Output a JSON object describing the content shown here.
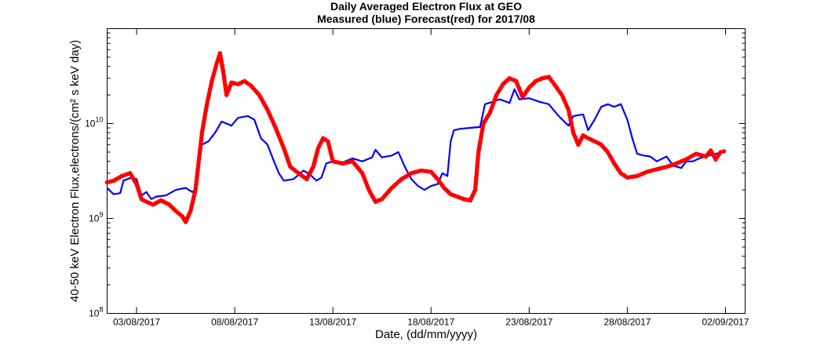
{
  "chart_data": {
    "type": "line",
    "title": "Daily Averaged Electron Flux at GEO",
    "subtitle": "Measured (blue) Forecast(red) for 2017/08",
    "xlabel": "Date, (dd/mm/yyyy)",
    "ylabel": "40-50 keV Electron Flux,electrons/(cm² s keV day)",
    "y_scale": "log",
    "ylim": [
      100000000.0,
      100000000000.0
    ],
    "y_ticks": [
      {
        "value": 100000000.0,
        "base": "10",
        "exp": "8"
      },
      {
        "value": 1000000000.0,
        "base": "10",
        "exp": "9"
      },
      {
        "value": 10000000000.0,
        "base": "10",
        "exp": "10"
      }
    ],
    "xlim": [
      "2017-08-01T12:00",
      "2017-09-03T00:00"
    ],
    "x_ticks": [
      {
        "value": "2017-08-03",
        "label": "03/08/2017"
      },
      {
        "value": "2017-08-08",
        "label": "08/08/2017"
      },
      {
        "value": "2017-08-13",
        "label": "13/08/2017"
      },
      {
        "value": "2017-08-18",
        "label": "18/08/2017"
      },
      {
        "value": "2017-08-23",
        "label": "23/08/2017"
      },
      {
        "value": "2017-08-28",
        "label": "28/08/2017"
      },
      {
        "value": "2017-09-02",
        "label": "02/09/2017"
      }
    ],
    "grid": false,
    "series": [
      {
        "color": "#0000ff",
        "style": "line",
        "points": [
          [
            "2017-08-01T12:00",
            2100000000.0
          ],
          [
            "2017-08-01T20:00",
            1800000000.0
          ],
          [
            "2017-08-02T04:00",
            1850000000.0
          ],
          [
            "2017-08-02T08:00",
            2500000000.0
          ],
          [
            "2017-08-02T18:00",
            2700000000.0
          ],
          [
            "2017-08-03T00:00",
            2600000000.0
          ],
          [
            "2017-08-03T06:00",
            1750000000.0
          ],
          [
            "2017-08-03T12:00",
            1900000000.0
          ],
          [
            "2017-08-03T18:00",
            1600000000.0
          ],
          [
            "2017-08-04T00:00",
            1700000000.0
          ],
          [
            "2017-08-04T12:00",
            1750000000.0
          ],
          [
            "2017-08-05T00:00",
            2000000000.0
          ],
          [
            "2017-08-05T12:00",
            2100000000.0
          ],
          [
            "2017-08-05T20:00",
            1900000000.0
          ],
          [
            "2017-08-06T00:00",
            2000000000.0
          ],
          [
            "2017-08-06T04:00",
            3500000000.0
          ],
          [
            "2017-08-06T08:00",
            6000000000.0
          ],
          [
            "2017-08-06T16:00",
            6500000000.0
          ],
          [
            "2017-08-07T00:00",
            8000000000.0
          ],
          [
            "2017-08-07T08:00",
            10500000000.0
          ],
          [
            "2017-08-07T20:00",
            9500000000.0
          ],
          [
            "2017-08-08T04:00",
            11500000000.0
          ],
          [
            "2017-08-08T16:00",
            12000000000.0
          ],
          [
            "2017-08-09T00:00",
            11000000000.0
          ],
          [
            "2017-08-09T08:00",
            7000000000.0
          ],
          [
            "2017-08-09T16:00",
            6000000000.0
          ],
          [
            "2017-08-10T00:00",
            4000000000.0
          ],
          [
            "2017-08-10T06:00",
            3000000000.0
          ],
          [
            "2017-08-10T12:00",
            2500000000.0
          ],
          [
            "2017-08-11T00:00",
            2600000000.0
          ],
          [
            "2017-08-11T12:00",
            3200000000.0
          ],
          [
            "2017-08-11T20:00",
            2900000000.0
          ],
          [
            "2017-08-12T04:00",
            2500000000.0
          ],
          [
            "2017-08-12T10:00",
            2700000000.0
          ],
          [
            "2017-08-12T16:00",
            3800000000.0
          ],
          [
            "2017-08-13T00:00",
            4000000000.0
          ],
          [
            "2017-08-13T12:00",
            3900000000.0
          ],
          [
            "2017-08-14T00:00",
            4300000000.0
          ],
          [
            "2017-08-14T12:00",
            4000000000.0
          ],
          [
            "2017-08-15T00:00",
            4400000000.0
          ],
          [
            "2017-08-15T04:00",
            5300000000.0
          ],
          [
            "2017-08-15T12:00",
            4400000000.0
          ],
          [
            "2017-08-16T00:00",
            4600000000.0
          ],
          [
            "2017-08-16T08:00",
            5000000000.0
          ],
          [
            "2017-08-16T16:00",
            3500000000.0
          ],
          [
            "2017-08-17T00:00",
            2600000000.0
          ],
          [
            "2017-08-17T08:00",
            2200000000.0
          ],
          [
            "2017-08-17T16:00",
            2000000000.0
          ],
          [
            "2017-08-18T00:00",
            2200000000.0
          ],
          [
            "2017-08-18T08:00",
            2300000000.0
          ],
          [
            "2017-08-18T14:00",
            3000000000.0
          ],
          [
            "2017-08-18T20:00",
            2800000000.0
          ],
          [
            "2017-08-19T00:00",
            6500000000.0
          ],
          [
            "2017-08-19T04:00",
            8500000000.0
          ],
          [
            "2017-08-19T12:00",
            8800000000.0
          ],
          [
            "2017-08-20T00:00",
            9000000000.0
          ],
          [
            "2017-08-20T12:00",
            9200000000.0
          ],
          [
            "2017-08-20T18:00",
            16000000000.0
          ],
          [
            "2017-08-21T04:00",
            17000000000.0
          ],
          [
            "2017-08-21T12:00",
            18000000000.0
          ],
          [
            "2017-08-22T00:00",
            16500000000.0
          ],
          [
            "2017-08-22T06:00",
            23000000000.0
          ],
          [
            "2017-08-22T12:00",
            18000000000.0
          ],
          [
            "2017-08-23T00:00",
            18500000000.0
          ],
          [
            "2017-08-23T12:00",
            17000000000.0
          ],
          [
            "2017-08-24T00:00",
            16000000000.0
          ],
          [
            "2017-08-24T12:00",
            12000000000.0
          ],
          [
            "2017-08-25T00:00",
            9500000000.0
          ],
          [
            "2017-08-25T06:00",
            12000000000.0
          ],
          [
            "2017-08-25T18:00",
            12500000000.0
          ],
          [
            "2017-08-26T00:00",
            8500000000.0
          ],
          [
            "2017-08-26T08:00",
            11000000000.0
          ],
          [
            "2017-08-26T16:00",
            15000000000.0
          ],
          [
            "2017-08-27T00:00",
            16000000000.0
          ],
          [
            "2017-08-27T08:00",
            15000000000.0
          ],
          [
            "2017-08-27T16:00",
            16000000000.0
          ],
          [
            "2017-08-28T00:00",
            11000000000.0
          ],
          [
            "2017-08-28T06:00",
            7000000000.0
          ],
          [
            "2017-08-28T12:00",
            4800000000.0
          ],
          [
            "2017-08-28T20:00",
            4600000000.0
          ],
          [
            "2017-08-29T04:00",
            4500000000.0
          ],
          [
            "2017-08-29T12:00",
            4000000000.0
          ],
          [
            "2017-08-30T00:00",
            4500000000.0
          ],
          [
            "2017-08-30T08:00",
            3600000000.0
          ],
          [
            "2017-08-30T18:00",
            3400000000.0
          ],
          [
            "2017-08-31T00:00",
            4000000000.0
          ],
          [
            "2017-08-31T08:00",
            4000000000.0
          ],
          [
            "2017-08-31T16:00",
            4300000000.0
          ],
          [
            "2017-09-01T00:00",
            4500000000.0
          ],
          [
            "2017-09-01T12:00",
            4800000000.0
          ],
          [
            "2017-09-01T20:00",
            5000000000.0
          ]
        ]
      },
      {
        "color": "#ff0000",
        "style": "markers",
        "points": [
          [
            "2017-08-01T12:00",
            2400000000.0
          ],
          [
            "2017-08-01T20:00",
            2500000000.0
          ],
          [
            "2017-08-02T06:00",
            2800000000.0
          ],
          [
            "2017-08-02T16:00",
            3000000000.0
          ],
          [
            "2017-08-03T00:00",
            2300000000.0
          ],
          [
            "2017-08-03T06:00",
            1600000000.0
          ],
          [
            "2017-08-03T12:00",
            1500000000.0
          ],
          [
            "2017-08-03T20:00",
            1400000000.0
          ],
          [
            "2017-08-04T06:00",
            1550000000.0
          ],
          [
            "2017-08-04T16:00",
            1400000000.0
          ],
          [
            "2017-08-05T00:00",
            1200000000.0
          ],
          [
            "2017-08-05T08:00",
            1050000000.0
          ],
          [
            "2017-08-05T12:00",
            920000000.0
          ],
          [
            "2017-08-05T18:00",
            1200000000.0
          ],
          [
            "2017-08-06T00:00",
            2000000000.0
          ],
          [
            "2017-08-06T04:00",
            4000000000.0
          ],
          [
            "2017-08-06T08:00",
            8000000000.0
          ],
          [
            "2017-08-06T14:00",
            16000000000.0
          ],
          [
            "2017-08-06T20:00",
            28000000000.0
          ],
          [
            "2017-08-07T02:00",
            43000000000.0
          ],
          [
            "2017-08-07T06:00",
            55000000000.0
          ],
          [
            "2017-08-07T10:00",
            35000000000.0
          ],
          [
            "2017-08-07T14:00",
            20000000000.0
          ],
          [
            "2017-08-07T20:00",
            27000000000.0
          ],
          [
            "2017-08-08T04:00",
            26000000000.0
          ],
          [
            "2017-08-08T12:00",
            28000000000.0
          ],
          [
            "2017-08-08T20:00",
            25000000000.0
          ],
          [
            "2017-08-09T06:00",
            20000000000.0
          ],
          [
            "2017-08-09T16:00",
            14000000000.0
          ],
          [
            "2017-08-10T02:00",
            9000000000.0
          ],
          [
            "2017-08-10T12:00",
            5500000000.0
          ],
          [
            "2017-08-10T20:00",
            3500000000.0
          ],
          [
            "2017-08-11T06:00",
            3000000000.0
          ],
          [
            "2017-08-11T16:00",
            2600000000.0
          ],
          [
            "2017-08-12T00:00",
            3500000000.0
          ],
          [
            "2017-08-12T06:00",
            5500000000.0
          ],
          [
            "2017-08-12T12:00",
            7000000000.0
          ],
          [
            "2017-08-12T18:00",
            6500000000.0
          ],
          [
            "2017-08-13T00:00",
            4000000000.0
          ],
          [
            "2017-08-13T12:00",
            3800000000.0
          ],
          [
            "2017-08-14T00:00",
            4000000000.0
          ],
          [
            "2017-08-14T12:00",
            3000000000.0
          ],
          [
            "2017-08-14T20:00",
            2000000000.0
          ],
          [
            "2017-08-15T04:00",
            1500000000.0
          ],
          [
            "2017-08-15T12:00",
            1600000000.0
          ],
          [
            "2017-08-16T00:00",
            2100000000.0
          ],
          [
            "2017-08-16T12:00",
            2600000000.0
          ],
          [
            "2017-08-17T00:00",
            3000000000.0
          ],
          [
            "2017-08-17T12:00",
            3200000000.0
          ],
          [
            "2017-08-18T00:00",
            3100000000.0
          ],
          [
            "2017-08-18T08:00",
            2600000000.0
          ],
          [
            "2017-08-18T16:00",
            2100000000.0
          ],
          [
            "2017-08-19T00:00",
            1800000000.0
          ],
          [
            "2017-08-19T08:00",
            1700000000.0
          ],
          [
            "2017-08-19T16:00",
            1600000000.0
          ],
          [
            "2017-08-20T00:00",
            1550000000.0
          ],
          [
            "2017-08-20T06:00",
            2000000000.0
          ],
          [
            "2017-08-20T10:00",
            5000000000.0
          ],
          [
            "2017-08-20T16:00",
            10000000000.0
          ],
          [
            "2017-08-21T00:00",
            13000000000.0
          ],
          [
            "2017-08-21T08:00",
            20000000000.0
          ],
          [
            "2017-08-21T16:00",
            26000000000.0
          ],
          [
            "2017-08-22T00:00",
            30000000000.0
          ],
          [
            "2017-08-22T08:00",
            28000000000.0
          ],
          [
            "2017-08-22T16:00",
            19000000000.0
          ],
          [
            "2017-08-23T00:00",
            24000000000.0
          ],
          [
            "2017-08-23T08:00",
            28000000000.0
          ],
          [
            "2017-08-23T16:00",
            30000000000.0
          ],
          [
            "2017-08-24T00:00",
            31000000000.0
          ],
          [
            "2017-08-24T08:00",
            25000000000.0
          ],
          [
            "2017-08-24T16:00",
            20000000000.0
          ],
          [
            "2017-08-25T00:00",
            14000000000.0
          ],
          [
            "2017-08-25T06:00",
            8000000000.0
          ],
          [
            "2017-08-25T12:00",
            6000000000.0
          ],
          [
            "2017-08-25T18:00",
            7500000000.0
          ],
          [
            "2017-08-26T00:00",
            7000000000.0
          ],
          [
            "2017-08-26T08:00",
            6500000000.0
          ],
          [
            "2017-08-26T16:00",
            6000000000.0
          ],
          [
            "2017-08-27T00:00",
            5000000000.0
          ],
          [
            "2017-08-27T08:00",
            3800000000.0
          ],
          [
            "2017-08-27T16:00",
            3000000000.0
          ],
          [
            "2017-08-28T00:00",
            2700000000.0
          ],
          [
            "2017-08-28T12:00",
            2800000000.0
          ],
          [
            "2017-08-29T00:00",
            3100000000.0
          ],
          [
            "2017-08-29T12:00",
            3300000000.0
          ],
          [
            "2017-08-30T00:00",
            3500000000.0
          ],
          [
            "2017-08-30T12:00",
            3800000000.0
          ],
          [
            "2017-08-31T00:00",
            4200000000.0
          ],
          [
            "2017-08-31T12:00",
            4800000000.0
          ],
          [
            "2017-09-01T00:00",
            4500000000.0
          ],
          [
            "2017-09-01T06:00",
            5200000000.0
          ],
          [
            "2017-09-01T12:00",
            4200000000.0
          ],
          [
            "2017-09-01T18:00",
            5000000000.0
          ],
          [
            "2017-09-01T22:00",
            5100000000.0
          ]
        ]
      }
    ]
  }
}
